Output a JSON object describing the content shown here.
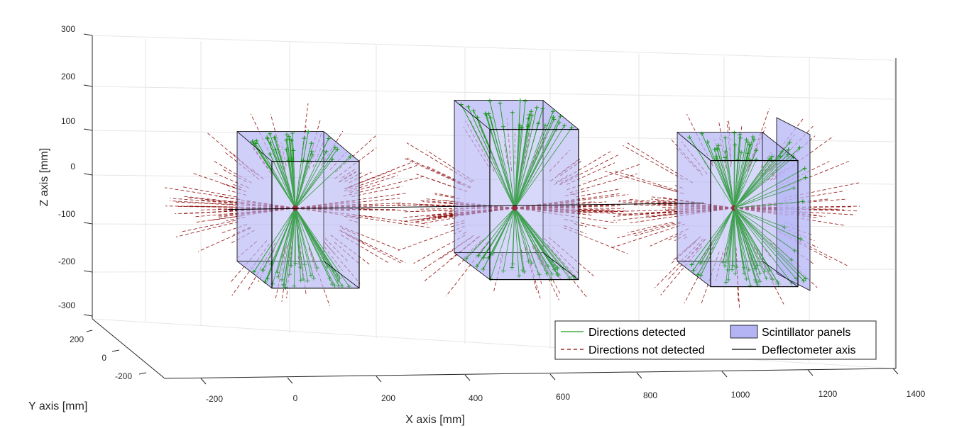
{
  "chart_data": {
    "type": "3d-line",
    "title": "",
    "xlabel": "X axis [mm]",
    "ylabel": "Y axis [mm]",
    "zlabel": "Z axis [mm]",
    "x_ticks": [
      "-200",
      "0",
      "200",
      "400",
      "600",
      "800",
      "1000",
      "1200",
      "1400"
    ],
    "y_ticks": [
      "200",
      "0",
      "-200"
    ],
    "z_ticks": [
      "300",
      "200",
      "100",
      "0",
      "-100",
      "-200",
      "-300"
    ],
    "xlim": [
      -300,
      1400
    ],
    "ylim": [
      -300,
      300
    ],
    "zlim": [
      -300,
      300
    ],
    "grid": true,
    "source_centers_x": [
      0,
      500,
      1000
    ],
    "deflectometer_axis": {
      "x": [
        -300,
        1400
      ],
      "y": 0,
      "z": -60
    },
    "legend": {
      "position": "bottom-right",
      "entries": [
        {
          "label": "Directions detected",
          "style": "solid",
          "color": "#1a9a1a"
        },
        {
          "label": "Scintillator panels",
          "style": "patch",
          "color": "#b4b4f5"
        },
        {
          "label": "Directions not detected",
          "style": "dashed",
          "color": "#8b0000"
        },
        {
          "label": "Deflectometer axis",
          "style": "solid",
          "color": "#000000"
        }
      ]
    },
    "colors": {
      "detected": "#1a9a1a",
      "not_detected": "#8b0000",
      "panel_fill": "#b4b4f5",
      "panel_edge": "#000000",
      "grid": "#e6e6e6",
      "axis": "#262626"
    }
  }
}
